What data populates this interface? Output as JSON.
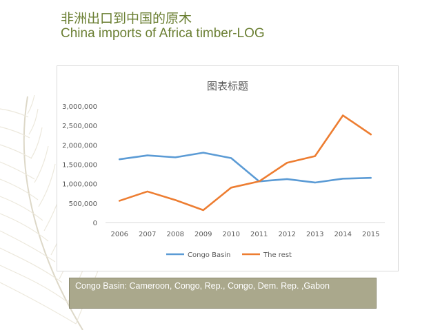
{
  "header": {
    "title_zh": "非洲出口到中国的原木",
    "title_en": "China imports of Africa timber-LOG"
  },
  "note": {
    "text": "Congo Basin: Cameroon, Congo, Rep., Congo, Dem. Rep. ,Gabon"
  },
  "colors": {
    "title_text": "#6b7f33",
    "series_congo": "#5b9bd5",
    "series_rest": "#ed7d31",
    "note_background": "#aaa88c"
  },
  "chart_data": {
    "type": "line",
    "title": "图表标题",
    "xlabel": "",
    "ylabel": "",
    "x": [
      "2006",
      "2007",
      "2008",
      "2009",
      "2010",
      "2011",
      "2012",
      "2013",
      "2014",
      "2015"
    ],
    "ylim": [
      0,
      3000000
    ],
    "yticks": [
      "0",
      "500,000",
      "1,000,000",
      "1,500,000",
      "2,000,000",
      "2,500,000",
      "3,000,000"
    ],
    "grid": false,
    "legend_position": "bottom",
    "series": [
      {
        "name": "Congo Basin",
        "values": [
          1630000,
          1730000,
          1680000,
          1800000,
          1660000,
          1060000,
          1120000,
          1030000,
          1130000,
          1150000
        ]
      },
      {
        "name": "The rest",
        "values": [
          560000,
          800000,
          580000,
          320000,
          900000,
          1060000,
          1540000,
          1710000,
          2760000,
          2270000
        ]
      }
    ]
  }
}
